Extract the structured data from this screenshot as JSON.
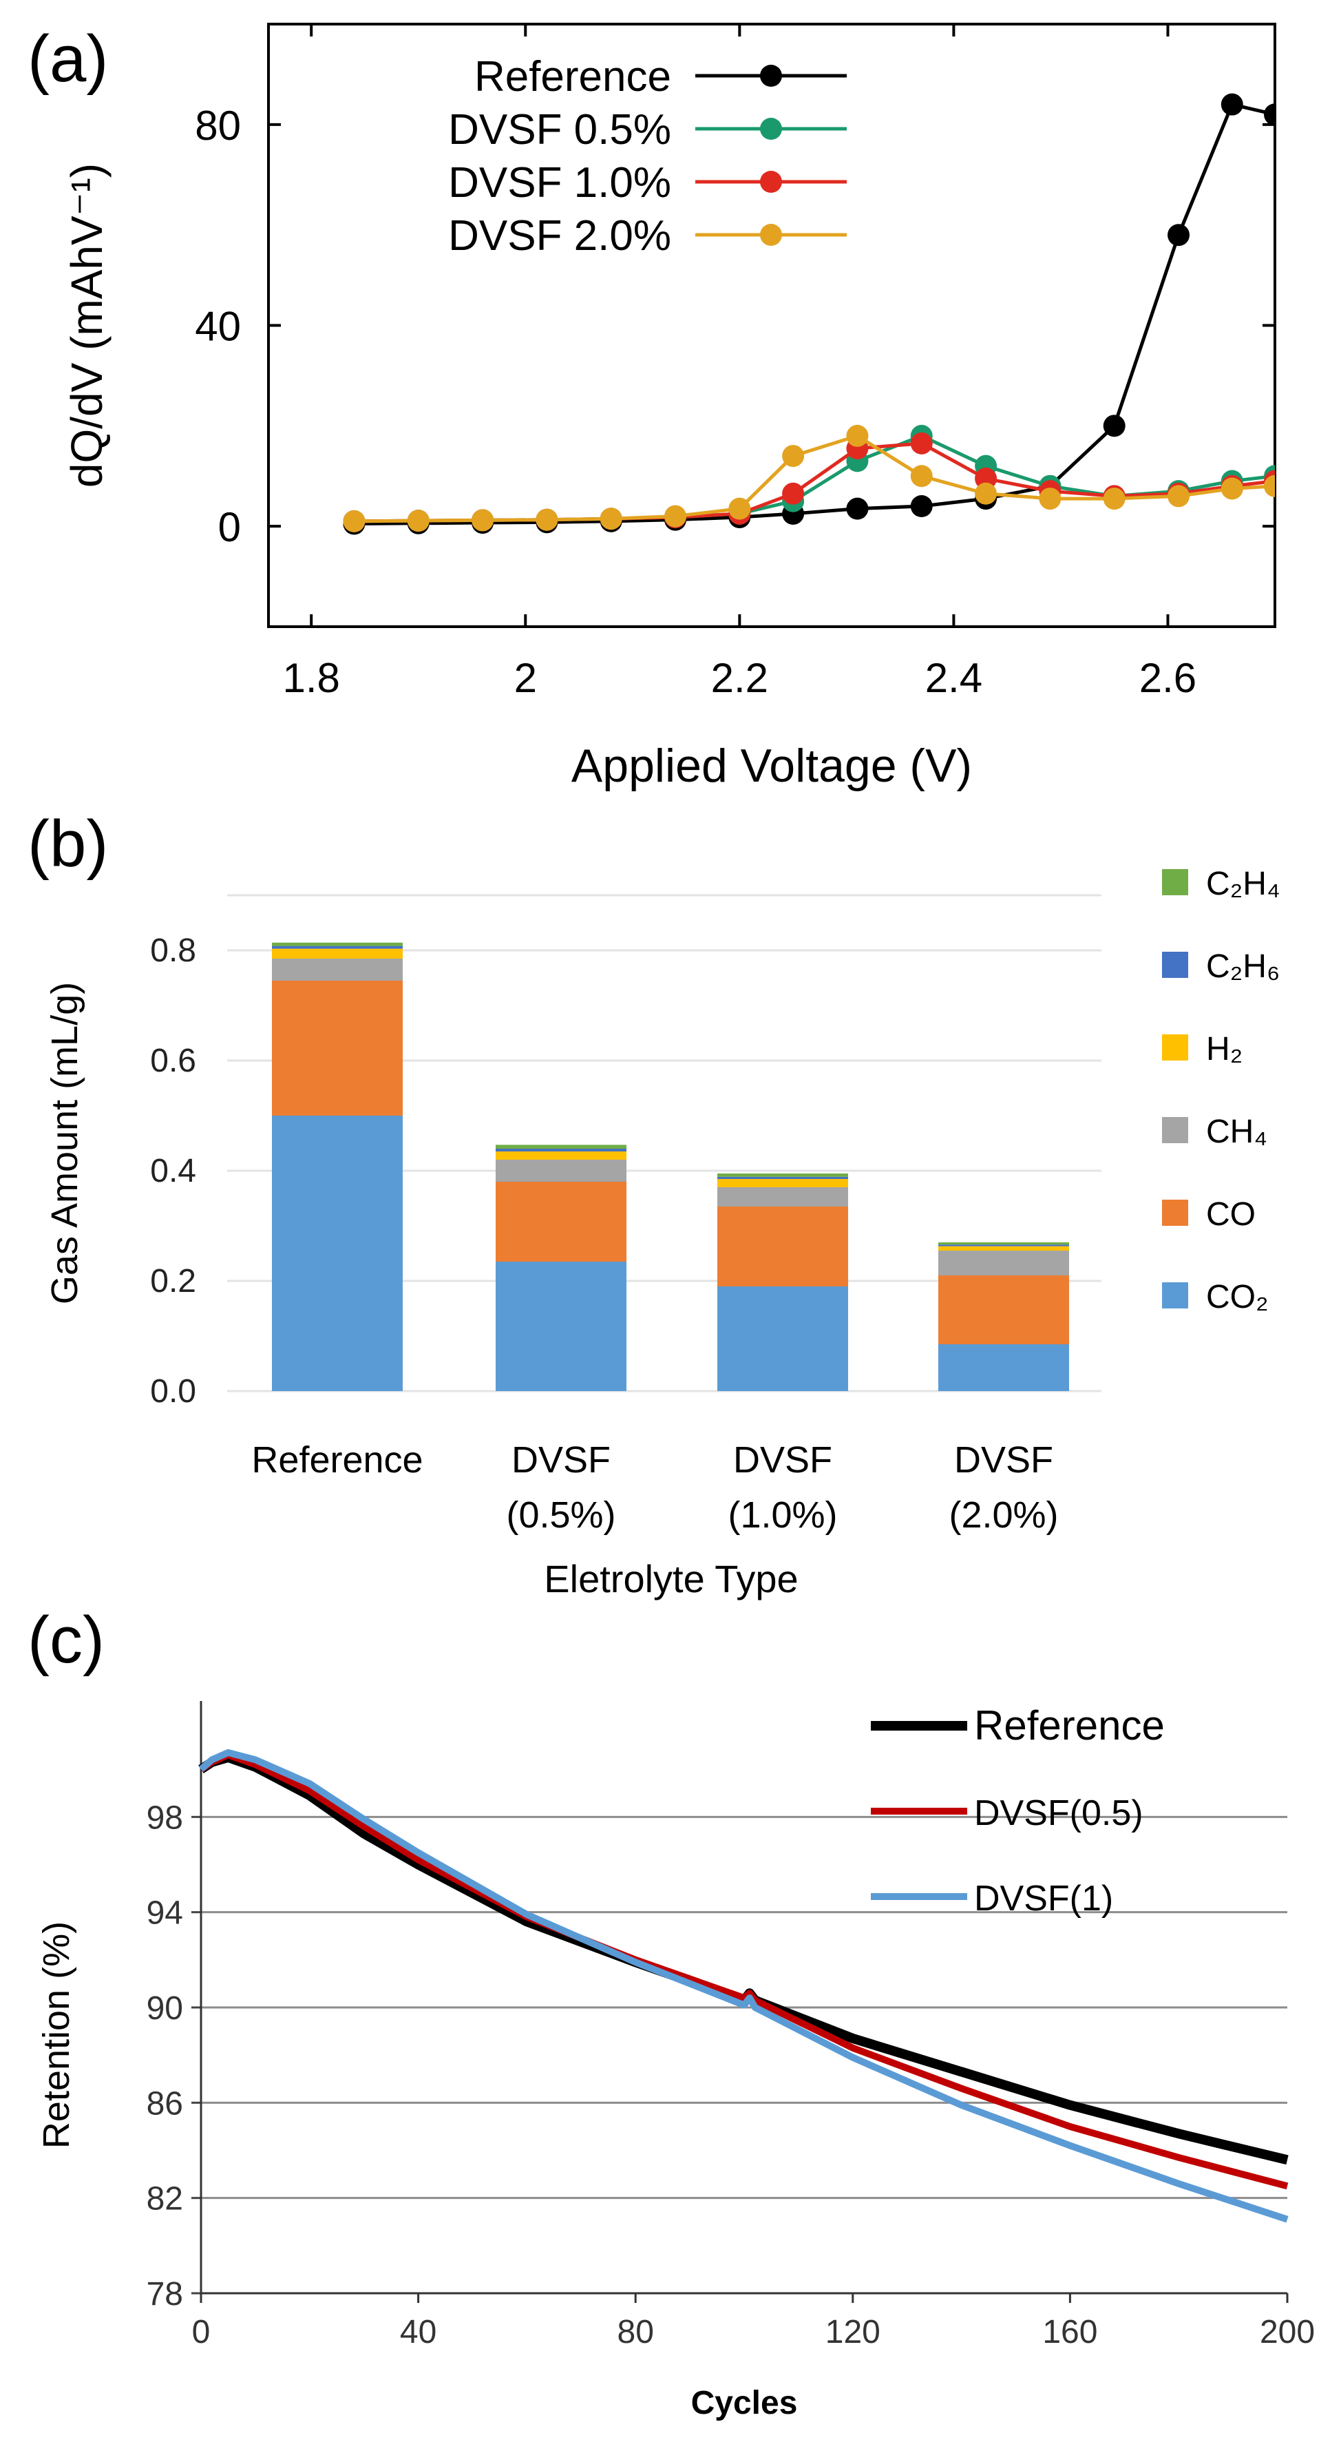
{
  "colors": {
    "reference_a": "#000000",
    "dvsf05_a": "#1a9a6c",
    "dvsf10_a": "#e02a20",
    "dvsf20_a": "#e3a321",
    "co2": "#5b9bd5",
    "co": "#ed7d31",
    "ch4": "#a5a5a5",
    "h2": "#ffc000",
    "c2h6": "#4472c4",
    "c2h4": "#70ad47",
    "reference_c": "#000000",
    "dvsf05_c": "#c00000",
    "dvsf1_c": "#5b9bd5"
  },
  "chart_data": [
    {
      "panel": "(a)",
      "type": "line",
      "xlabel": "Applied Voltage (V)",
      "ylabel": "dQ/dV (mAhV⁻¹)",
      "xlim": [
        1.76,
        2.7
      ],
      "ylim": [
        -20,
        100
      ],
      "xticks": [
        "1.8",
        "2",
        "2.2",
        "2.4",
        "2.6"
      ],
      "xtick_values": [
        1.8,
        2.0,
        2.2,
        2.4,
        2.6
      ],
      "yticks": [
        "0",
        "40",
        "80"
      ],
      "ytick_values": [
        0,
        40,
        80
      ],
      "legend_position": "top-left",
      "series": [
        {
          "name": "Reference",
          "color_key": "reference_a",
          "x": [
            1.84,
            1.9,
            1.96,
            2.02,
            2.08,
            2.14,
            2.2,
            2.25,
            2.31,
            2.37,
            2.43,
            2.49,
            2.55,
            2.61,
            2.66,
            2.7
          ],
          "y": [
            0.5,
            0.6,
            0.7,
            0.8,
            1.0,
            1.3,
            1.8,
            2.5,
            3.5,
            4.0,
            5.5,
            8,
            20,
            58,
            84,
            82
          ]
        },
        {
          "name": "DVSF 0.5%",
          "color_key": "dvsf05_a",
          "x": [
            1.84,
            1.9,
            1.96,
            2.02,
            2.08,
            2.14,
            2.2,
            2.25,
            2.31,
            2.37,
            2.43,
            2.49,
            2.55,
            2.61,
            2.66,
            2.7
          ],
          "y": [
            1.0,
            1.1,
            1.2,
            1.3,
            1.5,
            1.8,
            2.5,
            5,
            13,
            18,
            12,
            8,
            6,
            7,
            9,
            10
          ]
        },
        {
          "name": "DVSF 1.0%",
          "color_key": "dvsf10_a",
          "x": [
            1.84,
            1.9,
            1.96,
            2.02,
            2.08,
            2.14,
            2.2,
            2.25,
            2.31,
            2.37,
            2.43,
            2.49,
            2.55,
            2.61,
            2.66,
            2.7
          ],
          "y": [
            1.0,
            1.1,
            1.2,
            1.3,
            1.5,
            1.8,
            2.5,
            6.5,
            15.5,
            16.5,
            9.5,
            7,
            6,
            6.5,
            8,
            9
          ]
        },
        {
          "name": "DVSF 2.0%",
          "color_key": "dvsf20_a",
          "x": [
            1.84,
            1.9,
            1.96,
            2.02,
            2.08,
            2.14,
            2.2,
            2.25,
            2.31,
            2.37,
            2.43,
            2.49,
            2.55,
            2.61,
            2.66,
            2.7
          ],
          "y": [
            1.0,
            1.1,
            1.2,
            1.3,
            1.5,
            2.0,
            3.5,
            14,
            18,
            10,
            6.5,
            5.5,
            5.5,
            6,
            7.5,
            8
          ]
        }
      ]
    },
    {
      "panel": "(b)",
      "type": "bar",
      "stacked": true,
      "xlabel": "Eletrolyte Type",
      "ylabel": "Gas Amount (mL/g)",
      "ylim": [
        0,
        0.9
      ],
      "yticks": [
        "0.0",
        "0.2",
        "0.4",
        "0.6",
        "0.8"
      ],
      "ytick_values": [
        0,
        0.2,
        0.4,
        0.6,
        0.8
      ],
      "categories": [
        {
          "line1": "Reference",
          "line2": ""
        },
        {
          "line1": "DVSF",
          "line2": "(0.5%)"
        },
        {
          "line1": "DVSF",
          "line2": "(1.0%)"
        },
        {
          "line1": "DVSF",
          "line2": "(2.0%)"
        }
      ],
      "legend_position": "right",
      "series": [
        {
          "name": "CO₂",
          "color_key": "co2",
          "values": [
            0.5,
            0.235,
            0.19,
            0.085
          ]
        },
        {
          "name": "CO",
          "color_key": "co",
          "values": [
            0.245,
            0.145,
            0.145,
            0.125
          ]
        },
        {
          "name": "CH₄",
          "color_key": "ch4",
          "values": [
            0.04,
            0.04,
            0.035,
            0.045
          ]
        },
        {
          "name": "H₂",
          "color_key": "h2",
          "values": [
            0.018,
            0.015,
            0.015,
            0.008
          ]
        },
        {
          "name": "C₂H₆",
          "color_key": "c2h6",
          "values": [
            0.005,
            0.005,
            0.004,
            0.003
          ]
        },
        {
          "name": "C₂H₄",
          "color_key": "c2h4",
          "values": [
            0.006,
            0.007,
            0.006,
            0.004
          ]
        }
      ]
    },
    {
      "panel": "(c)",
      "type": "line",
      "xlabel": "Cycles",
      "ylabel": "Retention (%)",
      "xlim": [
        0,
        200
      ],
      "ylim": [
        78,
        102
      ],
      "xticks": [
        "0",
        "40",
        "80",
        "120",
        "160",
        "200"
      ],
      "xtick_values": [
        0,
        40,
        80,
        120,
        160,
        200
      ],
      "yticks": [
        "78",
        "82",
        "86",
        "90",
        "94",
        "98"
      ],
      "ytick_values": [
        78,
        82,
        86,
        90,
        94,
        98
      ],
      "grid": true,
      "legend_position": "top-right",
      "series": [
        {
          "name": "Reference",
          "color_key": "reference_c",
          "x": [
            0,
            2,
            5,
            10,
            20,
            30,
            40,
            60,
            80,
            100,
            101,
            102,
            120,
            140,
            160,
            180,
            200
          ],
          "y": [
            100.0,
            100.3,
            100.5,
            100.1,
            98.9,
            97.3,
            96.0,
            93.6,
            91.9,
            90.3,
            90.6,
            90.3,
            88.7,
            87.3,
            85.9,
            84.7,
            83.6
          ]
        },
        {
          "name": "DVSF(0.5)",
          "color_key": "dvsf05_c",
          "x": [
            0,
            2,
            5,
            10,
            20,
            30,
            40,
            60,
            80,
            100,
            101,
            102,
            120,
            140,
            160,
            180,
            200
          ],
          "y": [
            100.0,
            100.3,
            100.6,
            100.2,
            99.1,
            97.6,
            96.2,
            93.8,
            92.0,
            90.4,
            90.6,
            90.3,
            88.3,
            86.6,
            85.0,
            83.7,
            82.5
          ]
        },
        {
          "name": "DVSF(1)",
          "color_key": "dvsf1_c",
          "x": [
            0,
            2,
            5,
            10,
            20,
            30,
            40,
            60,
            80,
            100,
            101,
            102,
            120,
            140,
            160,
            180,
            200
          ],
          "y": [
            100.0,
            100.4,
            100.7,
            100.4,
            99.4,
            97.9,
            96.5,
            93.9,
            91.9,
            90.1,
            90.4,
            90.0,
            87.9,
            85.9,
            84.2,
            82.6,
            81.1
          ]
        }
      ]
    }
  ]
}
